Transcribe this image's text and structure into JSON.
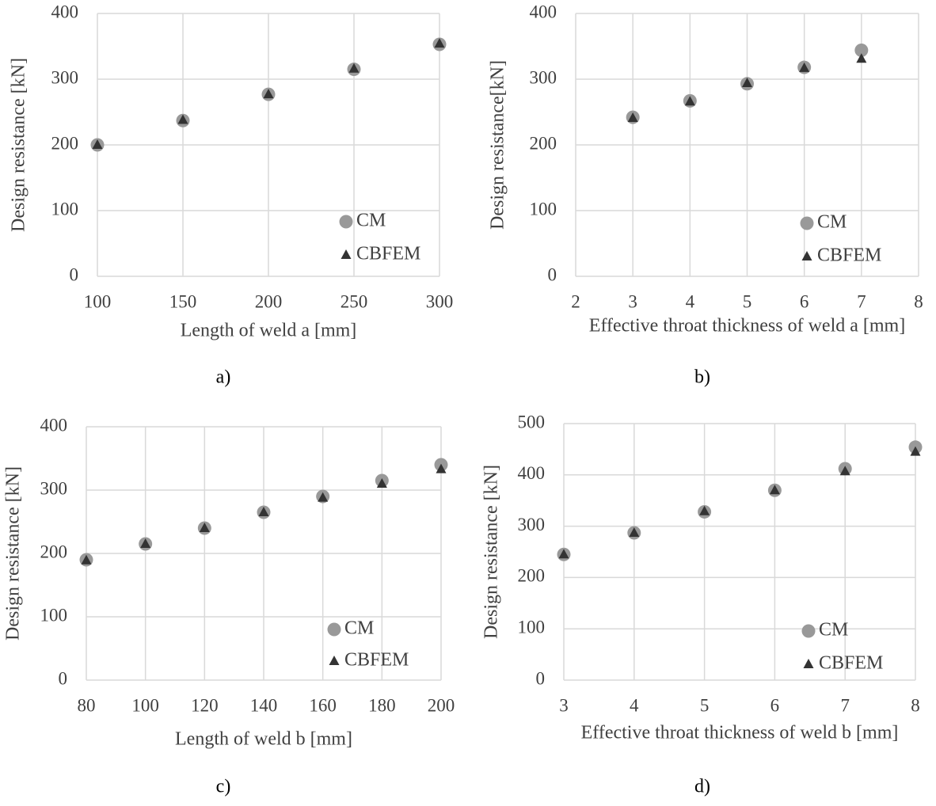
{
  "chart_data": [
    {
      "type": "scatter",
      "caption": "a)",
      "xlabel": "Length of weld a [mm]",
      "ylabel": "Design resistance [kN]",
      "x": [
        100,
        150,
        200,
        250,
        300
      ],
      "xlim": [
        100,
        300
      ],
      "xticks": [
        100,
        150,
        200,
        250,
        300
      ],
      "ylim": [
        0,
        400
      ],
      "yticks": [
        0,
        100,
        200,
        300,
        400
      ],
      "grid": true,
      "legend": "lower right",
      "series": [
        {
          "name": "CM",
          "color": "#999999",
          "marker": "circle",
          "values": [
            200,
            237,
            277,
            315,
            353
          ]
        },
        {
          "name": "CBFEM",
          "color": "#333333",
          "marker": "triangle",
          "values": [
            200,
            238,
            277,
            316,
            354
          ]
        }
      ]
    },
    {
      "type": "scatter",
      "caption": "b)",
      "xlabel": "Effective throat thickness of weld a [mm]",
      "ylabel": "Design resistance[kN]",
      "x": [
        3,
        4,
        5,
        6,
        7
      ],
      "xlim": [
        2,
        8
      ],
      "xticks": [
        2,
        3,
        4,
        5,
        6,
        7,
        8
      ],
      "ylim": [
        0,
        400
      ],
      "yticks": [
        0,
        100,
        200,
        300,
        400
      ],
      "grid": true,
      "legend": "lower right",
      "series": [
        {
          "name": "CM",
          "color": "#999999",
          "marker": "circle",
          "values": [
            242,
            267,
            293,
            318,
            344
          ]
        },
        {
          "name": "CBFEM",
          "color": "#333333",
          "marker": "triangle",
          "values": [
            241,
            266,
            294,
            317,
            331
          ]
        }
      ]
    },
    {
      "type": "scatter",
      "caption": "c)",
      "xlabel": "Length of weld b [mm]",
      "ylabel": "Design resistance [kN]",
      "x": [
        80,
        100,
        120,
        140,
        160,
        180,
        200
      ],
      "xlim": [
        80,
        200
      ],
      "xticks": [
        80,
        100,
        120,
        140,
        160,
        180,
        200
      ],
      "ylim": [
        0,
        400
      ],
      "yticks": [
        0,
        100,
        200,
        300,
        400
      ],
      "grid": true,
      "legend": "lower right",
      "series": [
        {
          "name": "CM",
          "color": "#999999",
          "marker": "circle",
          "values": [
            190,
            215,
            240,
            265,
            290,
            315,
            340
          ]
        },
        {
          "name": "CBFEM",
          "color": "#333333",
          "marker": "triangle",
          "values": [
            189,
            215,
            240,
            265,
            288,
            310,
            333
          ]
        }
      ]
    },
    {
      "type": "scatter",
      "caption": "d)",
      "xlabel": "Effective throat thickness of weld b [mm]",
      "ylabel": "Design resistance [kN]",
      "x": [
        3,
        4,
        5,
        6,
        7,
        8
      ],
      "xlim": [
        3,
        8
      ],
      "xticks": [
        3,
        4,
        5,
        6,
        7,
        8
      ],
      "ylim": [
        0,
        500
      ],
      "yticks": [
        0,
        100,
        200,
        300,
        400,
        500
      ],
      "grid": true,
      "legend": "lower right",
      "series": [
        {
          "name": "CM",
          "color": "#999999",
          "marker": "circle",
          "values": [
            245,
            287,
            328,
            370,
            412,
            454
          ]
        },
        {
          "name": "CBFEM",
          "color": "#333333",
          "marker": "triangle",
          "values": [
            245,
            287,
            329,
            370,
            407,
            445
          ]
        }
      ]
    }
  ]
}
